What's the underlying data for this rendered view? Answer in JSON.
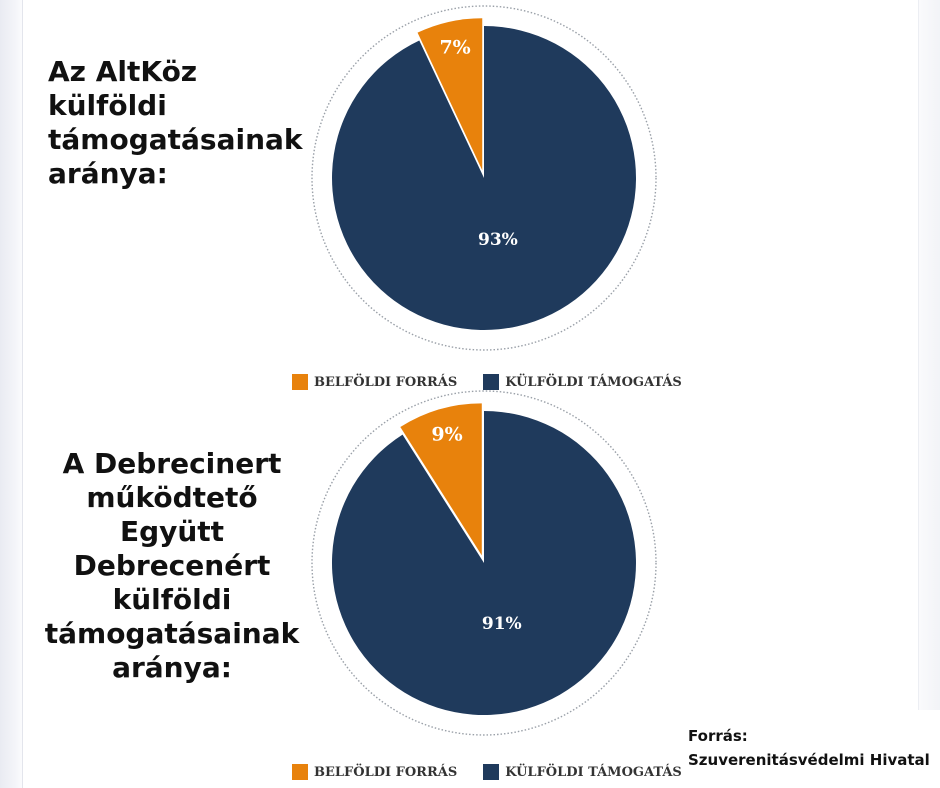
{
  "colors": {
    "domestic": "#E8820C",
    "foreign": "#1F3A5C",
    "outline": "#9aa0a8"
  },
  "chart_data": [
    {
      "type": "pie",
      "title": "Az AltKöz külföldi támogatásainak aránya:",
      "title_lines": [
        "Az AltKöz",
        "külföldi",
        "támogatásainak",
        "aránya:"
      ],
      "slices": [
        {
          "name": "BELFÖLDI FORRÁS",
          "value": 7,
          "label": "7%"
        },
        {
          "name": "KÜLFÖLDI TÁMOGATÁS",
          "value": 93,
          "label": "93%"
        }
      ],
      "legend": [
        "BELFÖLDI FORRÁS",
        "KÜLFÖLDI TÁMOGATÁS"
      ],
      "legend_position": "bottom"
    },
    {
      "type": "pie",
      "title": "A Debrecinert működtető Együtt Debrecenért külföldi támogatásainak aránya:",
      "title_lines": [
        "A Debrecinert",
        "működtető",
        "Együtt Debrecenért",
        "külföldi",
        "támogatásainak",
        "aránya:"
      ],
      "slices": [
        {
          "name": "BELFÖLDI FORRÁS",
          "value": 9,
          "label": "9%"
        },
        {
          "name": "KÜLFÖLDI TÁMOGATÁS",
          "value": 91,
          "label": "91%"
        }
      ],
      "legend": [
        "BELFÖLDI FORRÁS",
        "KÜLFÖLDI TÁMOGATÁS"
      ],
      "legend_position": "bottom"
    }
  ],
  "source": {
    "label": "Forrás:",
    "value": "Szuverenitásvédelmi Hivatal"
  }
}
